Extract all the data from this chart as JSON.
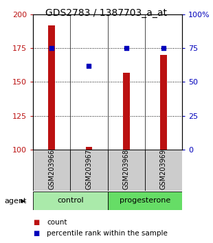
{
  "title": "GDS2783 / 1387703_a_at",
  "samples": [
    "GSM203966",
    "GSM203967",
    "GSM203968",
    "GSM203969"
  ],
  "count_values": [
    192,
    102,
    157,
    170
  ],
  "percentile_values": [
    75,
    62,
    75,
    75
  ],
  "count_base": 100,
  "ylim_left": [
    100,
    200
  ],
  "ylim_right": [
    0,
    100
  ],
  "left_ticks": [
    100,
    125,
    150,
    175,
    200
  ],
  "right_ticks": [
    0,
    25,
    50,
    75,
    100
  ],
  "bar_color": "#bb1111",
  "dot_color": "#0000bb",
  "bar_width": 0.18,
  "groups": [
    {
      "label": "control",
      "indices": [
        0,
        1
      ],
      "color": "#aaeaaa"
    },
    {
      "label": "progesterone",
      "indices": [
        2,
        3
      ],
      "color": "#66dd66"
    }
  ],
  "agent_label": "agent",
  "legend_count_label": "count",
  "legend_pct_label": "percentile rank within the sample",
  "label_box_color": "#cccccc",
  "title_fontsize": 10,
  "tick_fontsize": 8,
  "sample_fontsize": 7,
  "group_fontsize": 8,
  "legend_fontsize": 7.5
}
